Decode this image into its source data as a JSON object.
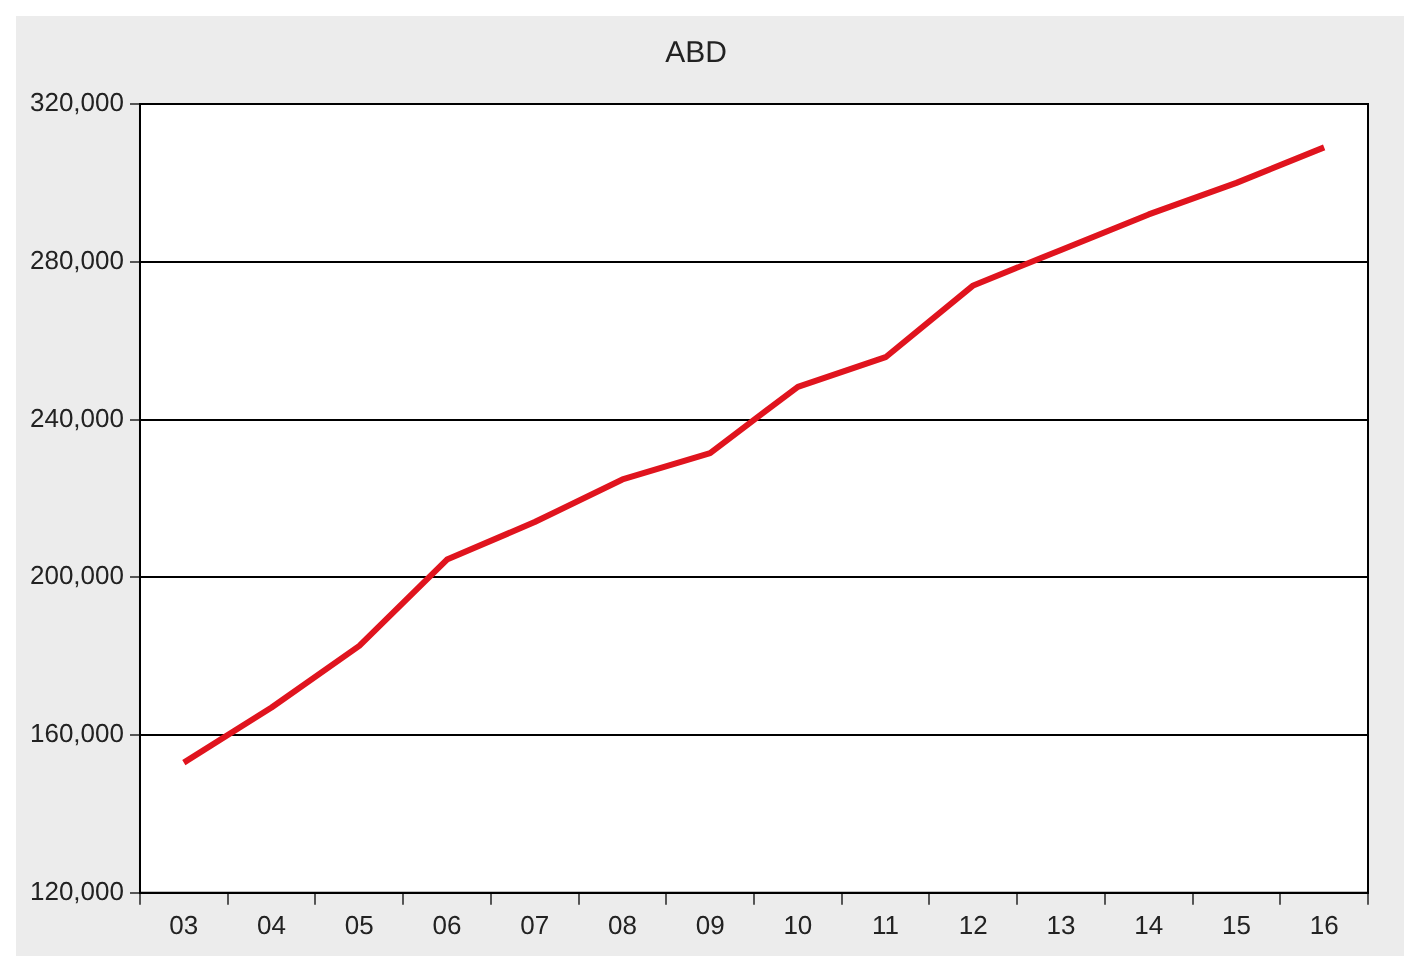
{
  "chart_data": {
    "type": "line",
    "title": "ABD",
    "categories": [
      "03",
      "04",
      "05",
      "06",
      "07",
      "08",
      "09",
      "10",
      "11",
      "12",
      "13",
      "14",
      "15",
      "16"
    ],
    "series": [
      {
        "color": "#e0141e",
        "values": [
          153000,
          167000,
          182600,
          204500,
          214000,
          224800,
          231500,
          248300,
          255800,
          274000,
          283000,
          292000,
          300000,
          309000
        ]
      }
    ],
    "ylim": [
      120000,
      320000
    ],
    "yticks": [
      {
        "value": 120000,
        "label": "120,000"
      },
      {
        "value": 160000,
        "label": "160,000"
      },
      {
        "value": 200000,
        "label": "200,000"
      },
      {
        "value": 240000,
        "label": "240,000"
      },
      {
        "value": 280000,
        "label": "280,000"
      },
      {
        "value": 320000,
        "label": "320,000"
      }
    ],
    "grid": "y",
    "legend": false,
    "marker": "none",
    "line_style": "solid"
  }
}
